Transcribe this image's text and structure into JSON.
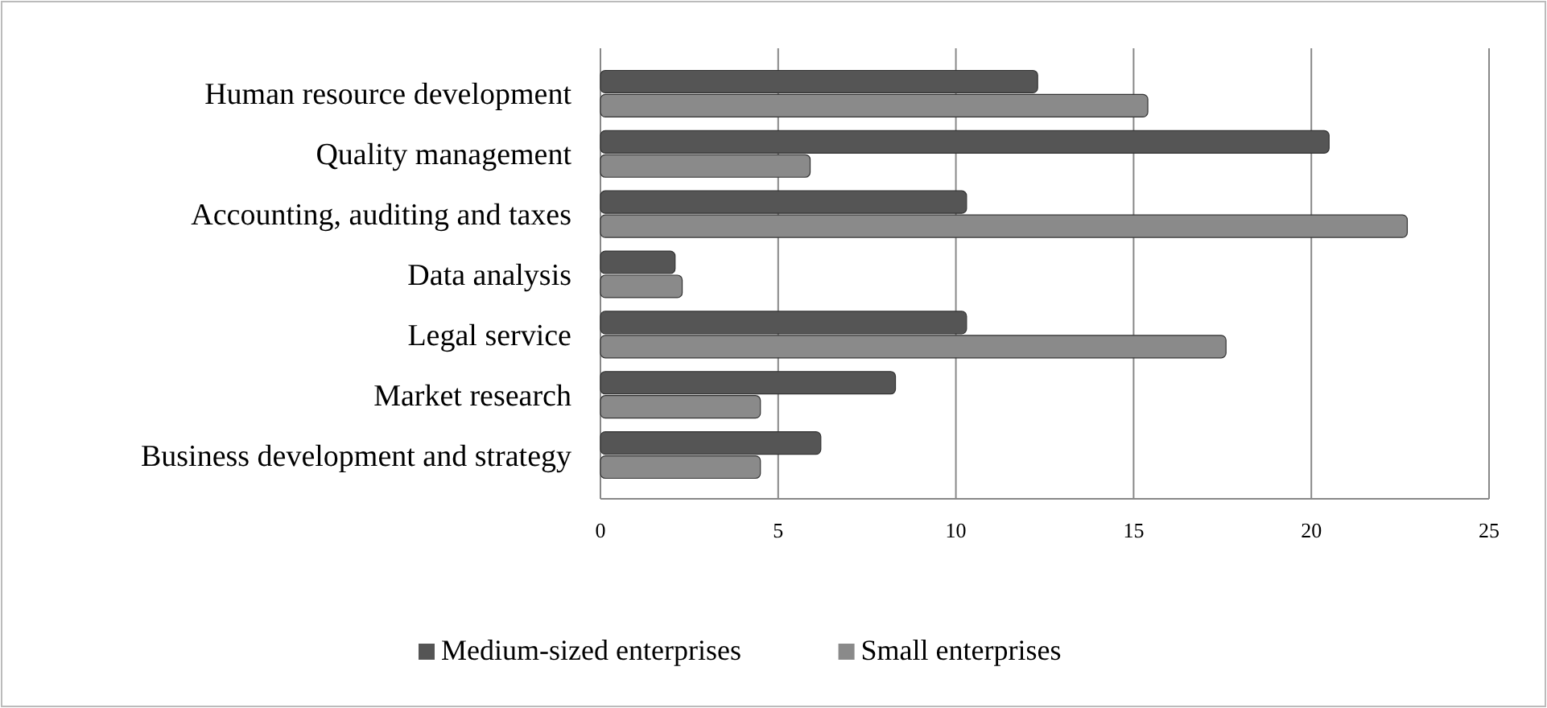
{
  "chart_data": {
    "type": "bar",
    "orientation": "horizontal",
    "categories": [
      "Human resource development",
      "Quality management",
      "Accounting, auditing and taxes",
      "Data analysis",
      "Legal service",
      "Market research",
      "Business development and strategy"
    ],
    "series": [
      {
        "name": "Medium-sized enterprises",
        "color": "#555555",
        "values": [
          12.3,
          20.5,
          10.3,
          2.1,
          10.3,
          8.3,
          6.2
        ]
      },
      {
        "name": "Small enterprises",
        "color": "#8a8a8a",
        "values": [
          15.4,
          5.9,
          22.7,
          2.3,
          17.6,
          4.5,
          4.5
        ]
      }
    ],
    "xlim": [
      0,
      25
    ],
    "xticks": [
      0,
      5,
      10,
      15,
      20,
      25
    ],
    "grid": "x",
    "legend": "bottom"
  }
}
